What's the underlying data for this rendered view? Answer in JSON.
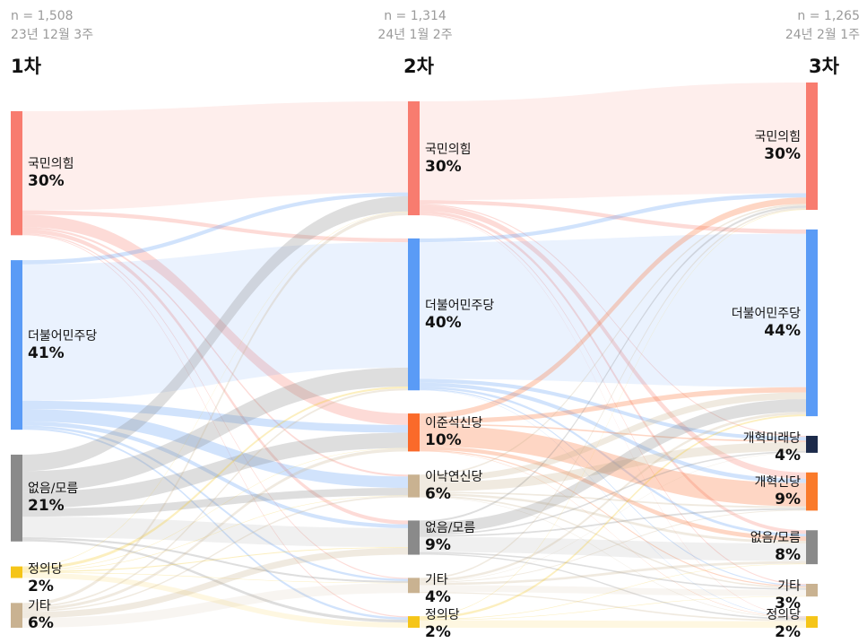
{
  "waves": [
    {
      "label": "1차",
      "n": "n = 1,508",
      "date": "23년 12월 3주"
    },
    {
      "label": "2차",
      "n": "n = 1,314",
      "date": "24년 1월 2주"
    },
    {
      "label": "3차",
      "n": "n = 1,265",
      "date": "24년 2월 1주"
    }
  ],
  "chart_data": {
    "type": "sankey",
    "columns": [
      [
        {
          "name": "국민의힘",
          "value": 30,
          "label": "30%",
          "color": "#f87c6f"
        },
        {
          "name": "더불어민주당",
          "value": 41,
          "label": "41%",
          "color": "#5a9bf6"
        },
        {
          "name": "없음/모름",
          "value": 21,
          "label": "21%",
          "color": "#8a8a8a"
        },
        {
          "name": "정의당",
          "value": 2,
          "label": "2%",
          "color": "#f5c518"
        },
        {
          "name": "기타",
          "value": 6,
          "label": "6%",
          "color": "#c9b291"
        }
      ],
      [
        {
          "name": "국민의힘",
          "value": 30,
          "label": "30%",
          "color": "#f87c6f"
        },
        {
          "name": "더불어민주당",
          "value": 40,
          "label": "40%",
          "color": "#5a9bf6"
        },
        {
          "name": "이준석신당",
          "value": 10,
          "label": "10%",
          "color": "#fa6a2a"
        },
        {
          "name": "이낙연신당",
          "value": 6,
          "label": "6%",
          "color": "#c9b291"
        },
        {
          "name": "없음/모름",
          "value": 9,
          "label": "9%",
          "color": "#8a8a8a"
        },
        {
          "name": "기타",
          "value": 4,
          "label": "4%",
          "color": "#c9b291"
        },
        {
          "name": "정의당",
          "value": 2,
          "label": "2%",
          "color": "#f5c518"
        }
      ],
      [
        {
          "name": "국민의힘",
          "value": 30,
          "label": "30%",
          "color": "#f87c6f"
        },
        {
          "name": "더불어민주당",
          "value": 44,
          "label": "44%",
          "color": "#5a9bf6"
        },
        {
          "name": "개혁미래당",
          "value": 4,
          "label": "4%",
          "color": "#1c2a4a"
        },
        {
          "name": "개혁신당",
          "value": 9,
          "label": "9%",
          "color": "#fa7a2a"
        },
        {
          "name": "없음/모름",
          "value": 8,
          "label": "8%",
          "color": "#8a8a8a"
        },
        {
          "name": "기타",
          "value": 3,
          "label": "3%",
          "color": "#c9b291"
        },
        {
          "name": "정의당",
          "value": 2,
          "label": "2%",
          "color": "#f5c518"
        }
      ]
    ],
    "flows_1_to_2": [
      [
        0,
        0,
        24
      ],
      [
        0,
        1,
        1
      ],
      [
        0,
        2,
        3
      ],
      [
        0,
        3,
        0.5
      ],
      [
        0,
        4,
        1
      ],
      [
        0,
        5,
        0.3
      ],
      [
        0,
        6,
        0.2
      ],
      [
        1,
        0,
        1
      ],
      [
        1,
        1,
        33
      ],
      [
        1,
        2,
        2
      ],
      [
        1,
        3,
        3
      ],
      [
        1,
        4,
        1
      ],
      [
        1,
        5,
        0.6
      ],
      [
        1,
        6,
        0.4
      ],
      [
        2,
        0,
        4
      ],
      [
        2,
        1,
        5
      ],
      [
        2,
        2,
        4
      ],
      [
        2,
        3,
        2
      ],
      [
        2,
        4,
        5
      ],
      [
        2,
        5,
        0.5
      ],
      [
        2,
        6,
        0.5
      ],
      [
        3,
        0,
        0.1
      ],
      [
        3,
        1,
        0.5
      ],
      [
        3,
        2,
        0.1
      ],
      [
        3,
        3,
        0.1
      ],
      [
        3,
        4,
        0.2
      ],
      [
        3,
        5,
        0.1
      ],
      [
        3,
        6,
        0.9
      ],
      [
        4,
        0,
        0.9
      ],
      [
        4,
        1,
        0.5
      ],
      [
        4,
        2,
        0.8
      ],
      [
        4,
        3,
        0.4
      ],
      [
        4,
        4,
        1.8
      ],
      [
        4,
        5,
        2.8
      ],
      [
        4,
        6,
        0
      ]
    ],
    "flows_2_to_3": [
      [
        0,
        0,
        26
      ],
      [
        0,
        1,
        1
      ],
      [
        0,
        2,
        0.3
      ],
      [
        0,
        3,
        1.5
      ],
      [
        0,
        4,
        0.8
      ],
      [
        0,
        5,
        0.3
      ],
      [
        0,
        6,
        0.1
      ],
      [
        1,
        0,
        1
      ],
      [
        1,
        1,
        36
      ],
      [
        1,
        2,
        1
      ],
      [
        1,
        3,
        1
      ],
      [
        1,
        4,
        0.6
      ],
      [
        1,
        5,
        0.3
      ],
      [
        1,
        6,
        0.1
      ],
      [
        2,
        0,
        1.5
      ],
      [
        2,
        1,
        1.2
      ],
      [
        2,
        2,
        0.4
      ],
      [
        2,
        3,
        5.5
      ],
      [
        2,
        4,
        1
      ],
      [
        2,
        5,
        0.3
      ],
      [
        2,
        6,
        0.1
      ],
      [
        3,
        0,
        0.4
      ],
      [
        3,
        1,
        1.6
      ],
      [
        3,
        2,
        2.5
      ],
      [
        3,
        3,
        0.4
      ],
      [
        3,
        4,
        0.6
      ],
      [
        3,
        5,
        0.4
      ],
      [
        3,
        6,
        0.1
      ],
      [
        4,
        0,
        0.5
      ],
      [
        4,
        1,
        3
      ],
      [
        4,
        2,
        0.4
      ],
      [
        4,
        3,
        0.4
      ],
      [
        4,
        4,
        4
      ],
      [
        4,
        5,
        0.4
      ],
      [
        4,
        6,
        0.3
      ],
      [
        5,
        0,
        0.4
      ],
      [
        5,
        1,
        0.6
      ],
      [
        5,
        2,
        0.1
      ],
      [
        5,
        3,
        0.2
      ],
      [
        5,
        4,
        0.6
      ],
      [
        5,
        5,
        1.8
      ],
      [
        5,
        6,
        0.3
      ],
      [
        6,
        0,
        0.1
      ],
      [
        6,
        1,
        0.4
      ],
      [
        6,
        2,
        0
      ],
      [
        6,
        3,
        0
      ],
      [
        6,
        4,
        0.1
      ],
      [
        6,
        5,
        0.1
      ],
      [
        6,
        6,
        1.3
      ]
    ]
  }
}
